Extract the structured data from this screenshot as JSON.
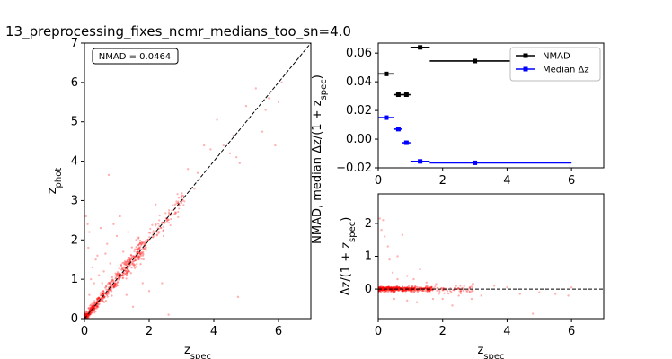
{
  "figure": {
    "title": "13_preprocessing_fixes_ncmr_medians_too_sn=4.0"
  },
  "chart_data": [
    {
      "id": "scatter-main",
      "type": "scatter",
      "xlabel": "z_spec",
      "ylabel": "z_phot",
      "xlim": [
        0,
        7
      ],
      "ylim": [
        0,
        7
      ],
      "xticks": [
        0,
        2,
        4,
        6
      ],
      "yticks": [
        0,
        1,
        2,
        3,
        4,
        5,
        6,
        7
      ],
      "annotation": "NMAD = 0.0464",
      "one_to_one_line": true,
      "points_color": "#ff0000",
      "outliers": [
        [
          0.05,
          2.6
        ],
        [
          0.1,
          2.4
        ],
        [
          0.15,
          2.2
        ],
        [
          0.12,
          1.8
        ],
        [
          0.2,
          1.0
        ],
        [
          0.25,
          1.3
        ],
        [
          0.3,
          0.9
        ],
        [
          0.35,
          1.5
        ],
        [
          0.4,
          1.6
        ],
        [
          0.5,
          2.3
        ],
        [
          0.6,
          1.2
        ],
        [
          0.7,
          1.9
        ],
        [
          0.75,
          3.65
        ],
        [
          0.8,
          1.4
        ],
        [
          0.9,
          2.4
        ],
        [
          1.0,
          2.1
        ],
        [
          1.1,
          2.6
        ],
        [
          1.2,
          1.7
        ],
        [
          1.3,
          0.6
        ],
        [
          1.5,
          0.3
        ],
        [
          1.6,
          2.0
        ],
        [
          1.8,
          0.9
        ],
        [
          2.0,
          0.7
        ],
        [
          2.2,
          2.9
        ],
        [
          2.4,
          0.9
        ],
        [
          2.6,
          0.1
        ],
        [
          2.8,
          2.9
        ],
        [
          3.0,
          3.1
        ],
        [
          3.2,
          3.8
        ],
        [
          3.4,
          3.3
        ],
        [
          3.5,
          3.7
        ],
        [
          3.7,
          4.4
        ],
        [
          3.9,
          4.3
        ],
        [
          4.1,
          5.05
        ],
        [
          4.3,
          4.4
        ],
        [
          4.5,
          4.2
        ],
        [
          4.6,
          4.65
        ],
        [
          4.7,
          4.1
        ],
        [
          4.75,
          0.55
        ],
        [
          4.8,
          3.95
        ],
        [
          5.0,
          5.4
        ],
        [
          5.3,
          5.85
        ],
        [
          5.5,
          4.75
        ],
        [
          5.6,
          5.3
        ],
        [
          5.7,
          5.6
        ],
        [
          5.9,
          4.4
        ],
        [
          6.0,
          5.5
        ],
        [
          6.1,
          6.0
        ],
        [
          0.15,
          0.6
        ],
        [
          0.2,
          0.35
        ],
        [
          0.45,
          1.1
        ],
        [
          0.55,
          0.9
        ],
        [
          0.65,
          1.65
        ],
        [
          1.35,
          2.2
        ]
      ]
    },
    {
      "id": "binned-stats",
      "type": "scatter",
      "xlabel": "",
      "ylabel": "NMAD, median Δz/(1 + z_spec)",
      "xlim": [
        0,
        7
      ],
      "ylim": [
        -0.02,
        0.067
      ],
      "xticks": [
        0,
        2,
        4,
        6
      ],
      "yticks": [
        -0.02,
        0.0,
        0.02,
        0.04,
        0.06
      ],
      "ytick_labels": [
        "−0.02",
        "0.00",
        "0.02",
        "0.04",
        "0.06"
      ],
      "legend": "top-right",
      "series": [
        {
          "name": "NMAD",
          "color": "#000000",
          "points": [
            {
              "x": 0.25,
              "y": 0.0455,
              "xerr": [
                0.0,
                0.5
              ]
            },
            {
              "x": 0.625,
              "y": 0.031,
              "xerr": [
                0.5,
                0.75
              ]
            },
            {
              "x": 0.875,
              "y": 0.031,
              "xerr": [
                0.75,
                1.0
              ]
            },
            {
              "x": 1.3,
              "y": 0.064,
              "xerr": [
                1.0,
                1.6
              ]
            },
            {
              "x": 3.0,
              "y": 0.0545,
              "xerr": [
                1.6,
                6.0
              ]
            }
          ]
        },
        {
          "name": "Median Δz",
          "color": "#0000ff",
          "points": [
            {
              "x": 0.25,
              "y": 0.015,
              "xerr": [
                0.0,
                0.5
              ]
            },
            {
              "x": 0.625,
              "y": 0.007,
              "xerr": [
                0.5,
                0.75
              ]
            },
            {
              "x": 0.875,
              "y": -0.0025,
              "xerr": [
                0.75,
                1.0
              ]
            },
            {
              "x": 1.3,
              "y": -0.0155,
              "xerr": [
                1.0,
                1.6
              ]
            },
            {
              "x": 3.0,
              "y": -0.0165,
              "xerr": [
                1.6,
                6.0
              ]
            }
          ]
        }
      ]
    },
    {
      "id": "residuals",
      "type": "scatter",
      "xlabel": "z_spec",
      "ylabel": "Δz/(1 + z_spec)",
      "xlim": [
        0,
        7
      ],
      "ylim": [
        -0.9,
        2.9
      ],
      "xticks": [
        0,
        2,
        4,
        6
      ],
      "yticks": [
        0,
        1,
        2
      ],
      "zero_line": true,
      "points_color": "#ff0000",
      "outliers": [
        [
          0.05,
          2.15
        ],
        [
          0.15,
          2.1
        ],
        [
          0.1,
          1.8
        ],
        [
          0.2,
          1.6
        ],
        [
          0.3,
          1.3
        ],
        [
          0.35,
          0.9
        ],
        [
          0.6,
          1.0
        ],
        [
          0.75,
          1.65
        ],
        [
          0.45,
          0.5
        ],
        [
          0.6,
          0.3
        ],
        [
          0.9,
          0.4
        ],
        [
          1.1,
          0.3
        ],
        [
          1.3,
          0.6
        ],
        [
          0.5,
          -0.3
        ],
        [
          0.9,
          -0.35
        ],
        [
          1.2,
          -0.4
        ],
        [
          1.7,
          -0.3
        ],
        [
          2.0,
          -0.3
        ],
        [
          2.3,
          -0.5
        ],
        [
          2.5,
          -0.2
        ],
        [
          2.9,
          -0.3
        ],
        [
          3.2,
          -0.2
        ],
        [
          3.6,
          0.1
        ],
        [
          4.0,
          0.05
        ],
        [
          4.4,
          -0.15
        ],
        [
          4.8,
          -0.75
        ],
        [
          5.0,
          -0.1
        ],
        [
          5.5,
          -0.15
        ],
        [
          5.9,
          -0.2
        ],
        [
          6.0,
          0.05
        ],
        [
          1.5,
          0.2
        ],
        [
          1.8,
          0.15
        ]
      ]
    }
  ]
}
